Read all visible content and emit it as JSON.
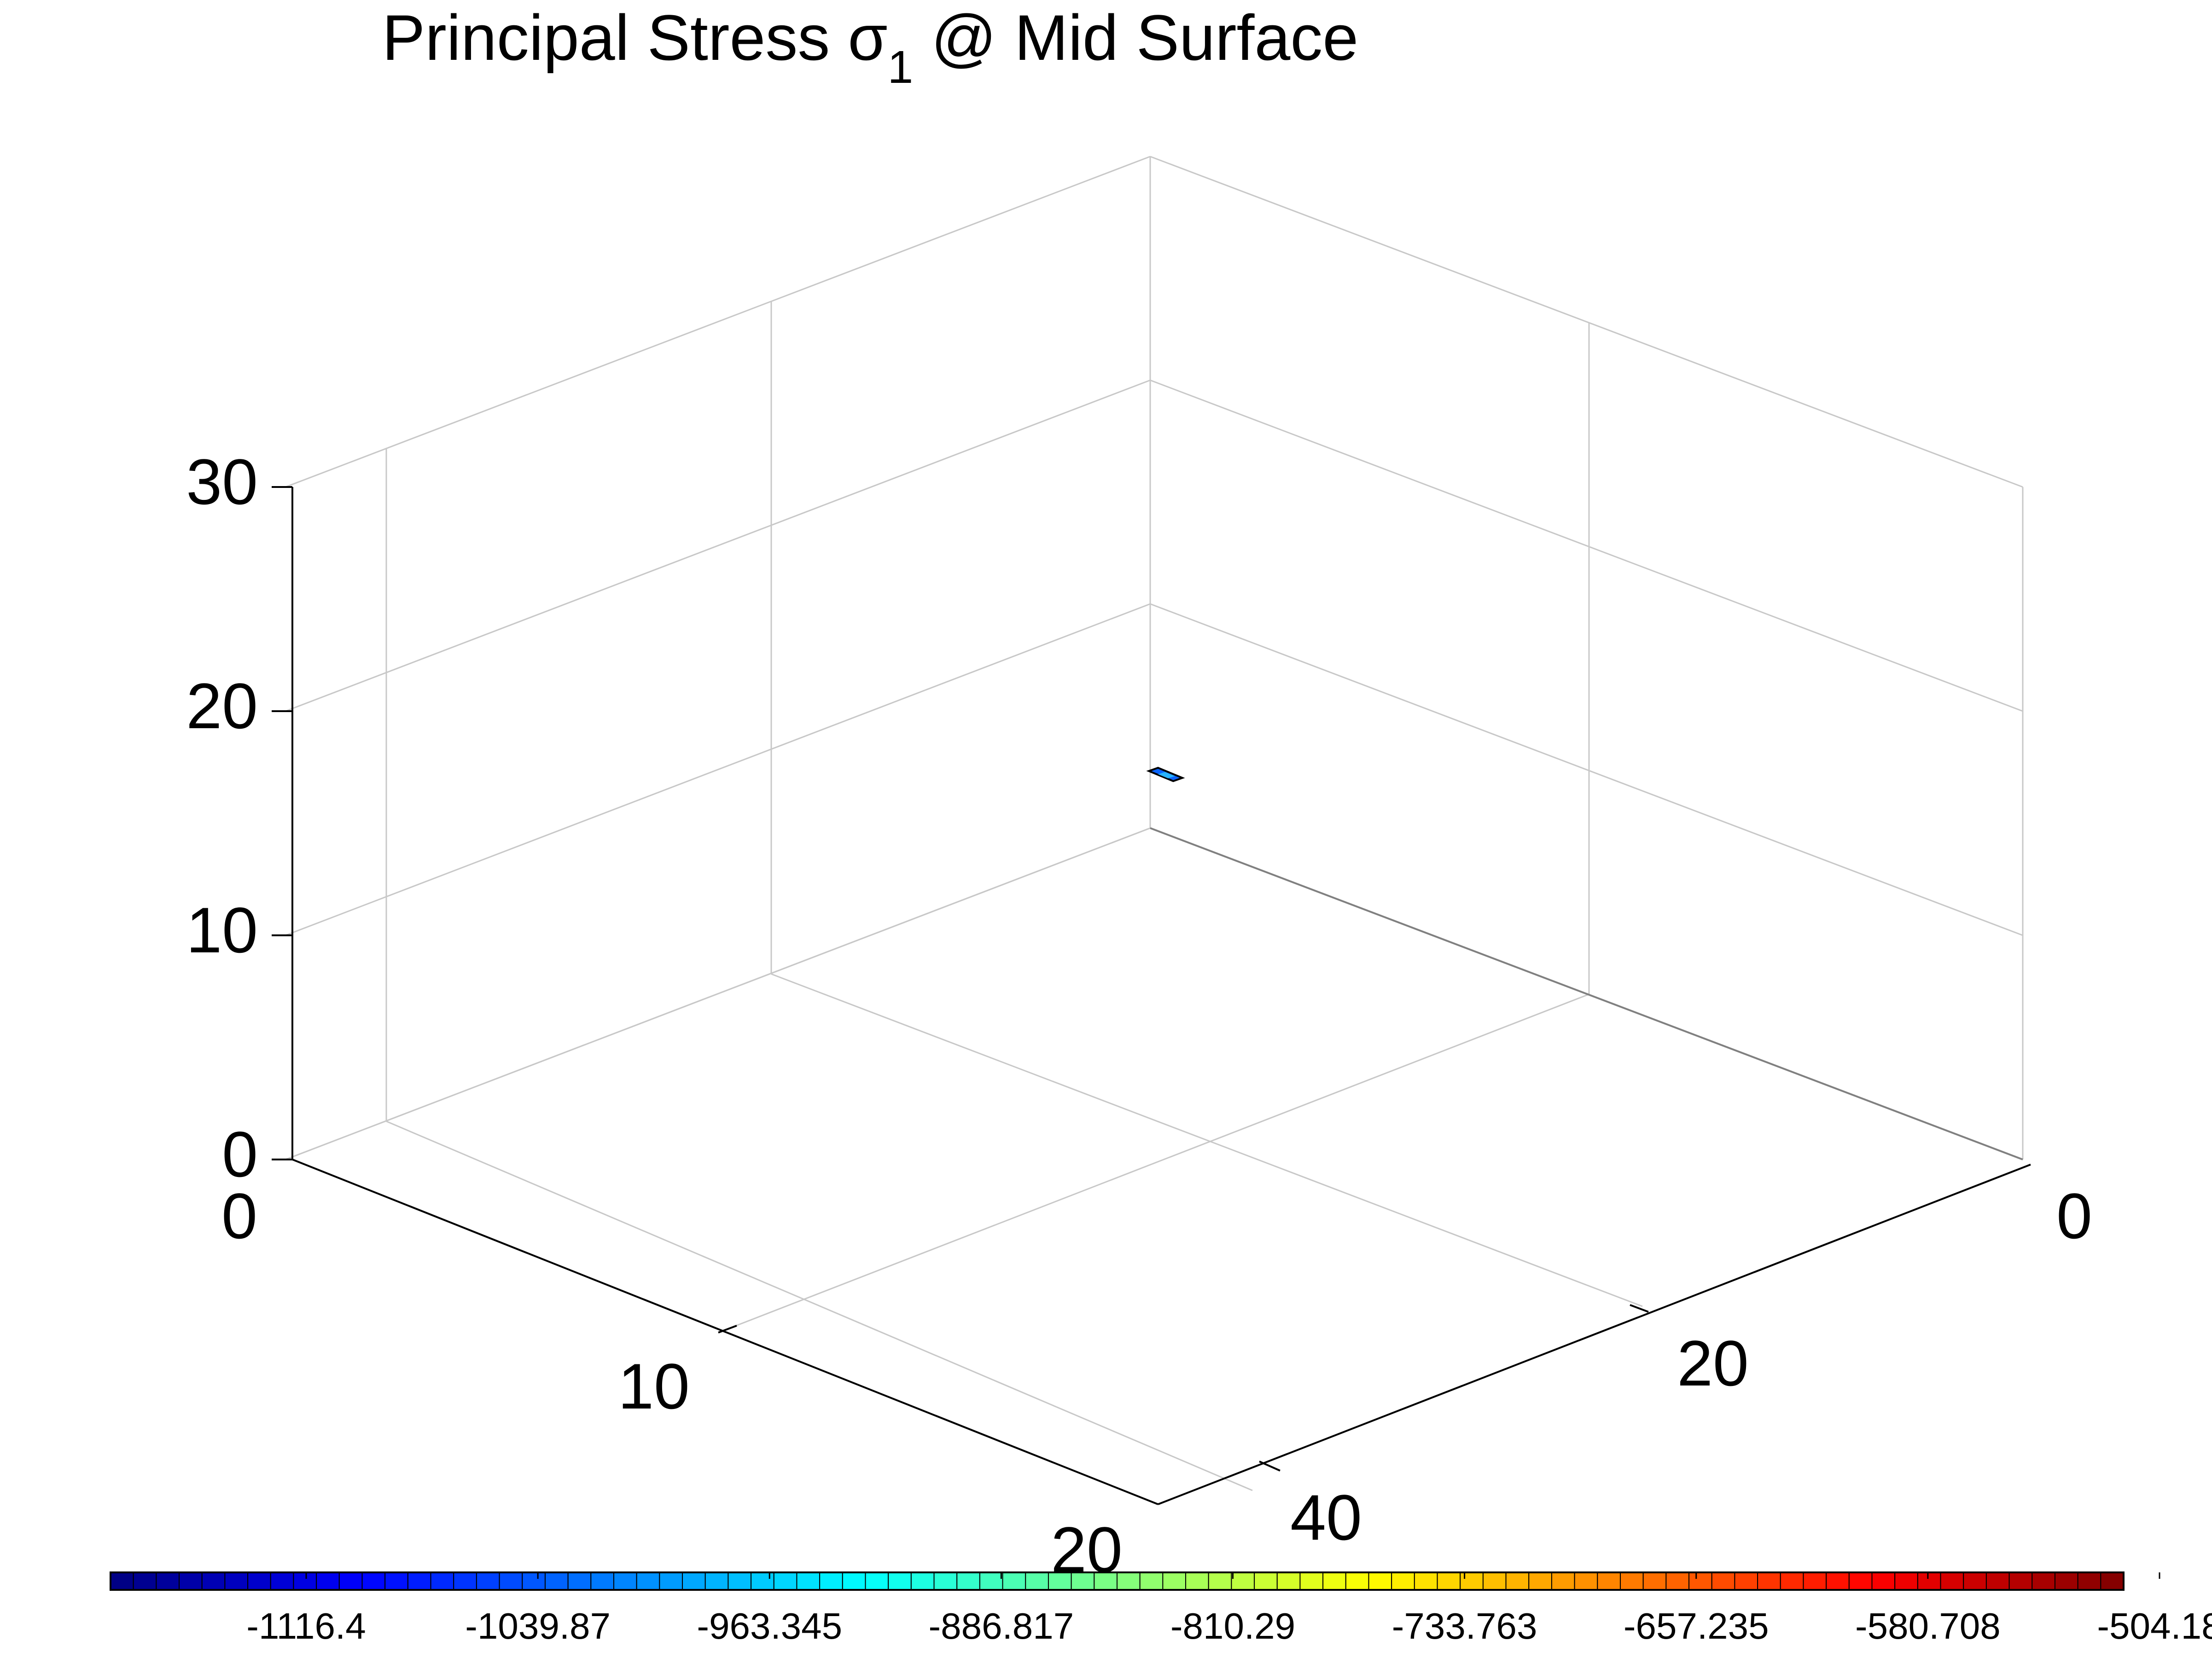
{
  "chart_data": {
    "type": "surface3d",
    "title": {
      "main": "Principal Stress ",
      "symbol": "σ",
      "subscript": "1",
      "rest": " @ Mid Surface"
    },
    "axes": {
      "x": {
        "ticks": [
          "0",
          "10",
          "20"
        ],
        "range": [
          0,
          20
        ]
      },
      "y": {
        "ticks": [
          "0",
          "20",
          "40"
        ],
        "range": [
          0,
          40
        ]
      },
      "z": {
        "ticks": [
          "0",
          "10",
          "20",
          "30"
        ],
        "range": [
          0,
          30
        ]
      }
    },
    "grid": true,
    "surface_patch": {
      "description_values": [
        -1116.4,
        -1039.87
      ],
      "color": "#0a64ff",
      "edge_color": "#000000"
    },
    "colorbar": {
      "orientation": "horizontal",
      "placement": "bottom",
      "colormap": "jet",
      "levels": 88,
      "tick_labels": [
        "-1116.4",
        "-1039.87",
        "-963.345",
        "-886.817",
        "-810.29",
        "-733.763",
        "-657.235",
        "-580.708",
        "-504.18"
      ]
    }
  }
}
